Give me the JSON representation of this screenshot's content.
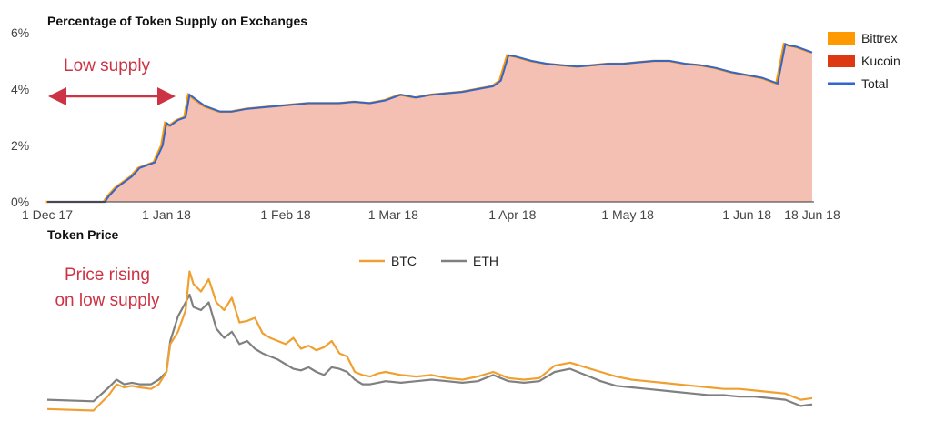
{
  "colors": {
    "bittrex": "#ff9900",
    "kucoin": "#dc3912",
    "total": "#3366cc",
    "fill": "#f4c0b4",
    "btc": "#f0a030",
    "eth": "#808080",
    "annotation": "#cc3344",
    "arrow": "#cc3344"
  },
  "chart_data": [
    {
      "type": "area",
      "title": "Percentage of Token Supply on Exchanges",
      "x_axis": {
        "tick_labels": [
          "1 Dec 17",
          "1 Jan 18",
          "1 Feb 18",
          "1 Mar 18",
          "1 Apr 18",
          "1 May 18",
          "1 Jun 18",
          "18 Jun 18"
        ],
        "tick_days": [
          0,
          31,
          62,
          90,
          121,
          151,
          182,
          199
        ],
        "range_days": [
          0,
          199
        ]
      },
      "y_axis": {
        "tick_labels": [
          "0%",
          "2%",
          "4%",
          "6%"
        ],
        "tick_values": [
          0,
          2,
          4,
          6
        ],
        "ylim": [
          0,
          6
        ]
      },
      "legend": [
        "Bittrex",
        "Kucoin",
        "Total"
      ],
      "legend_position": "right",
      "series": [
        {
          "name": "Total",
          "x_days": [
            0,
            15,
            16,
            18,
            20,
            22,
            24,
            26,
            28,
            30,
            31,
            32,
            34,
            36,
            37,
            39,
            41,
            43,
            45,
            48,
            52,
            56,
            60,
            64,
            68,
            72,
            76,
            80,
            84,
            88,
            92,
            96,
            100,
            104,
            108,
            112,
            116,
            118,
            120,
            122,
            126,
            130,
            134,
            138,
            142,
            146,
            150,
            154,
            158,
            162,
            166,
            170,
            174,
            178,
            182,
            186,
            190,
            192,
            193,
            195,
            197,
            199
          ],
          "values": [
            0,
            0,
            0.2,
            0.5,
            0.7,
            0.9,
            1.2,
            1.3,
            1.4,
            2.0,
            2.8,
            2.7,
            2.9,
            3.0,
            3.8,
            3.6,
            3.4,
            3.3,
            3.2,
            3.2,
            3.3,
            3.35,
            3.4,
            3.45,
            3.5,
            3.5,
            3.5,
            3.55,
            3.5,
            3.6,
            3.8,
            3.7,
            3.8,
            3.85,
            3.9,
            4.0,
            4.1,
            4.3,
            5.2,
            5.15,
            5.0,
            4.9,
            4.85,
            4.8,
            4.85,
            4.9,
            4.9,
            4.95,
            5.0,
            5.0,
            4.9,
            4.85,
            4.75,
            4.6,
            4.5,
            4.4,
            4.2,
            5.6,
            5.55,
            5.5,
            5.4,
            5.3
          ]
        }
      ],
      "annotations": [
        {
          "text": "Low supply",
          "arrow": "double-headed, spanning 1 Dec 17 to 1 Jan 18 at about 3.7%"
        }
      ]
    },
    {
      "type": "line",
      "title": "Token Price",
      "legend": [
        "BTC",
        "ETH"
      ],
      "legend_position": "top",
      "x_range_days": [
        0,
        199
      ],
      "y_range_relative": [
        0,
        1
      ],
      "series": [
        {
          "name": "BTC",
          "x_days": [
            0,
            12,
            16,
            18,
            20,
            22,
            24,
            27,
            29,
            31,
            32,
            34,
            36,
            37,
            38,
            40,
            42,
            44,
            46,
            48,
            50,
            52,
            54,
            56,
            58,
            60,
            62,
            64,
            66,
            68,
            70,
            72,
            74,
            76,
            78,
            80,
            82,
            84,
            86,
            88,
            92,
            96,
            100,
            104,
            108,
            112,
            116,
            120,
            124,
            128,
            132,
            136,
            140,
            144,
            148,
            152,
            156,
            160,
            164,
            168,
            172,
            176,
            180,
            184,
            188,
            192,
            196,
            199
          ],
          "values": [
            0.06,
            0.05,
            0.15,
            0.22,
            0.2,
            0.21,
            0.2,
            0.19,
            0.22,
            0.3,
            0.48,
            0.56,
            0.7,
            0.95,
            0.87,
            0.82,
            0.9,
            0.75,
            0.7,
            0.78,
            0.62,
            0.63,
            0.65,
            0.55,
            0.52,
            0.5,
            0.48,
            0.52,
            0.45,
            0.47,
            0.44,
            0.46,
            0.5,
            0.42,
            0.4,
            0.3,
            0.28,
            0.27,
            0.29,
            0.3,
            0.28,
            0.27,
            0.28,
            0.26,
            0.25,
            0.27,
            0.3,
            0.26,
            0.25,
            0.26,
            0.34,
            0.36,
            0.33,
            0.3,
            0.27,
            0.25,
            0.24,
            0.23,
            0.22,
            0.21,
            0.2,
            0.19,
            0.19,
            0.18,
            0.17,
            0.16,
            0.12,
            0.13
          ]
        },
        {
          "name": "ETH",
          "x_days": [
            0,
            12,
            16,
            18,
            20,
            22,
            24,
            27,
            29,
            31,
            32,
            34,
            36,
            37,
            38,
            40,
            42,
            44,
            46,
            48,
            50,
            52,
            54,
            56,
            58,
            60,
            62,
            64,
            66,
            68,
            70,
            72,
            74,
            76,
            78,
            80,
            82,
            84,
            86,
            88,
            92,
            96,
            100,
            104,
            108,
            112,
            116,
            120,
            124,
            128,
            132,
            136,
            140,
            144,
            148,
            152,
            156,
            160,
            164,
            168,
            172,
            176,
            180,
            184,
            188,
            192,
            196,
            199
          ],
          "values": [
            0.12,
            0.11,
            0.2,
            0.25,
            0.22,
            0.23,
            0.22,
            0.22,
            0.25,
            0.3,
            0.5,
            0.66,
            0.75,
            0.8,
            0.72,
            0.7,
            0.75,
            0.58,
            0.52,
            0.56,
            0.48,
            0.5,
            0.45,
            0.42,
            0.4,
            0.38,
            0.35,
            0.32,
            0.31,
            0.33,
            0.3,
            0.28,
            0.33,
            0.32,
            0.3,
            0.25,
            0.22,
            0.22,
            0.23,
            0.24,
            0.23,
            0.24,
            0.25,
            0.24,
            0.23,
            0.24,
            0.28,
            0.24,
            0.23,
            0.24,
            0.3,
            0.32,
            0.28,
            0.24,
            0.21,
            0.2,
            0.19,
            0.18,
            0.17,
            0.16,
            0.15,
            0.15,
            0.14,
            0.14,
            0.13,
            0.12,
            0.08,
            0.09
          ]
        }
      ],
      "annotations": [
        {
          "text": "Price rising on low supply",
          "lines": [
            "Price rising",
            "on low supply"
          ]
        }
      ]
    }
  ]
}
